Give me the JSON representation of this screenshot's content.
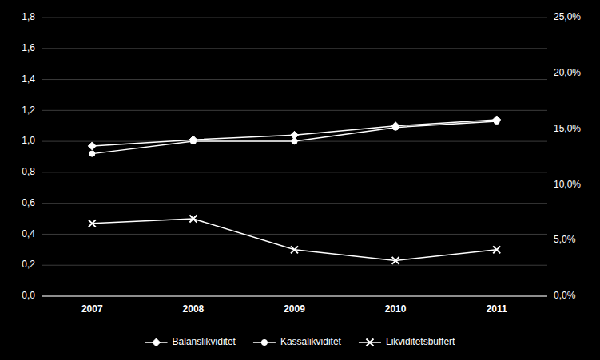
{
  "chart_data": {
    "type": "line",
    "x": [
      2007,
      2008,
      2009,
      2010,
      2011
    ],
    "xlim": [
      2006.5,
      2011.5
    ],
    "xticks": [
      2007,
      2008,
      2009,
      2010,
      2011
    ],
    "ylim": [
      0.0,
      1.8
    ],
    "yticks": [
      {
        "value": 0.0,
        "label": "0,0"
      },
      {
        "value": 0.2,
        "label": "0,2"
      },
      {
        "value": 0.4,
        "label": "0,4"
      },
      {
        "value": 0.6,
        "label": "0,6"
      },
      {
        "value": 0.8,
        "label": "0,8"
      },
      {
        "value": 1.0,
        "label": "1,0"
      },
      {
        "value": 1.2,
        "label": "1,2"
      },
      {
        "value": 1.4,
        "label": "1,4"
      },
      {
        "value": 1.6,
        "label": "1,6"
      },
      {
        "value": 1.8,
        "label": "1,8"
      }
    ],
    "y2lim": [
      0,
      25
    ],
    "y2ticks": [
      {
        "value": 0,
        "label": "0,0%"
      },
      {
        "value": 5,
        "label": "5,0%"
      },
      {
        "value": 10,
        "label": "10,0%"
      },
      {
        "value": 15,
        "label": "15,0%"
      },
      {
        "value": 20,
        "label": "20,0%"
      },
      {
        "value": 25,
        "label": "25,0%"
      }
    ],
    "grid": true,
    "legend": "bottom",
    "series": [
      {
        "name": "Balanslikviditet",
        "color": "#ffffff",
        "marker": "diamond",
        "values": [
          0.97,
          1.01,
          1.04,
          1.1,
          1.14
        ]
      },
      {
        "name": "Kassalikviditet",
        "color": "#ffffff",
        "marker": "circle",
        "values": [
          0.92,
          1.0,
          1.0,
          1.09,
          1.13
        ]
      },
      {
        "name": "Likviditetsbuffert",
        "color": "#ffffff",
        "marker": "x",
        "values": [
          0.47,
          0.5,
          0.3,
          0.23,
          0.3
        ]
      }
    ]
  }
}
